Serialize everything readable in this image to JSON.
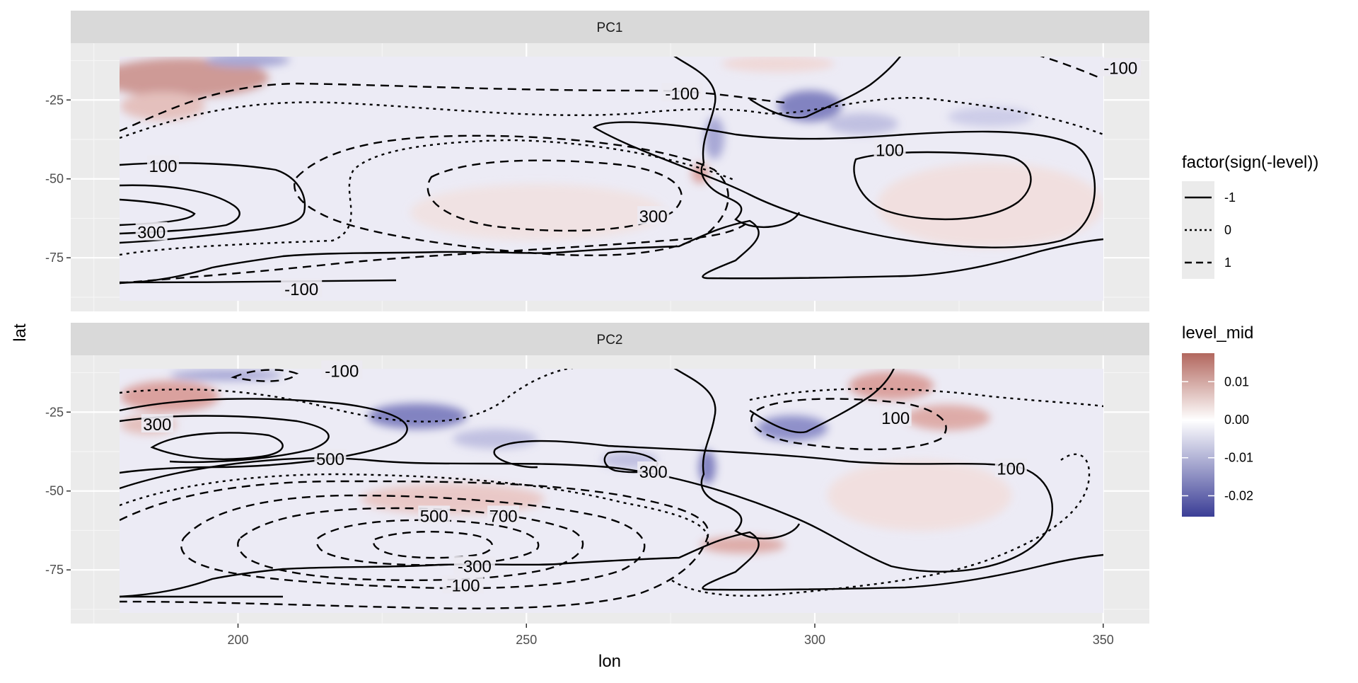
{
  "chart_data": {
    "type": "contour",
    "xlabel": "lon",
    "ylabel": "lat",
    "xlim": [
      171,
      358
    ],
    "x_ticks": [
      200,
      250,
      300,
      350
    ],
    "x_tick_labels": [
      "200",
      "250",
      "300",
      "350"
    ],
    "y_ticks": [
      -25,
      -50,
      -75
    ],
    "y_tick_labels": [
      "-25",
      "-50",
      "-75"
    ],
    "grid": true,
    "panels": [
      {
        "strip": "PC1",
        "ylim": [
          -92,
          -7
        ],
        "contour_labels": [
          {
            "text": "-100",
            "lon": 277,
            "lat": -23
          },
          {
            "text": "100",
            "lon": 313,
            "lat": -41
          },
          {
            "text": "-100",
            "lon": 353,
            "lat": -15
          },
          {
            "text": "100",
            "lon": 187,
            "lat": -46
          },
          {
            "text": "300",
            "lon": 185,
            "lat": -67
          },
          {
            "text": "300",
            "lon": 272,
            "lat": -62
          },
          {
            "text": "-100",
            "lon": 211,
            "lat": -85
          }
        ]
      },
      {
        "strip": "PC2",
        "ylim": [
          -92,
          -7
        ],
        "contour_labels": [
          {
            "text": "-100",
            "lon": 218,
            "lat": -12
          },
          {
            "text": "300",
            "lon": 186,
            "lat": -29
          },
          {
            "text": "500",
            "lon": 216,
            "lat": -40
          },
          {
            "text": "300",
            "lon": 272,
            "lat": -44
          },
          {
            "text": "100",
            "lon": 314,
            "lat": -27
          },
          {
            "text": "100",
            "lon": 334,
            "lat": -43
          },
          {
            "text": "500",
            "lon": 234,
            "lat": -58
          },
          {
            "text": "700",
            "lon": 246,
            "lat": -58
          },
          {
            "text": "-300",
            "lon": 241,
            "lat": -74
          },
          {
            "text": "-100",
            "lon": 239,
            "lat": -80
          }
        ]
      }
    ],
    "linetype_legend": {
      "title": "factor(sign(-level))",
      "entries": [
        {
          "label": "-1",
          "dash": "solid"
        },
        {
          "label": "0",
          "dash": "dotted"
        },
        {
          "label": "1",
          "dash": "dashed"
        }
      ]
    },
    "fill_legend": {
      "title": "level_mid",
      "labels": [
        "0.01",
        "0.00",
        "-0.01",
        "-0.02"
      ],
      "values": [
        0.01,
        0.0,
        -0.01,
        -0.02
      ],
      "range": [
        -0.0255,
        0.0175
      ],
      "colors": {
        "high": "#b2675e",
        "mid": "#ffffff",
        "low": "#3b3e96"
      }
    },
    "colors": {
      "panel_bg": "#ebebeb",
      "strip_bg": "#d9d9d9",
      "grid": "#ffffff",
      "field_base": "#ecebf5",
      "field_red": "#c98c86",
      "field_blue": "#6f71b8",
      "contour": "#000000"
    }
  }
}
